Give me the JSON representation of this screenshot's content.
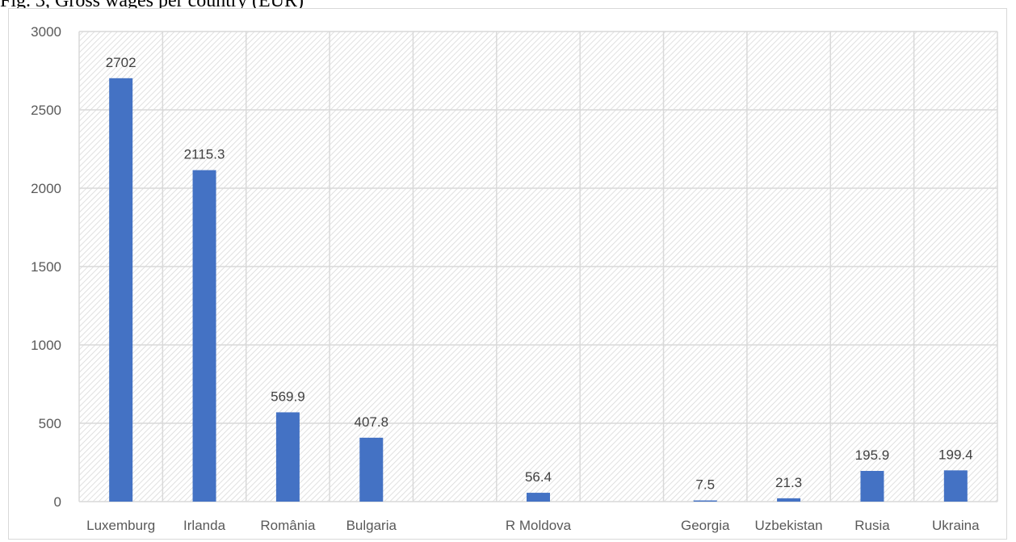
{
  "top_text": "Fig. 3, Gross wages per country (EUR)",
  "chart_data": {
    "type": "bar",
    "categories": [
      "Luxemburg",
      "Irlanda",
      "România",
      "Bulgaria",
      "",
      "R Moldova",
      "",
      "Georgia",
      "Uzbekistan",
      "Rusia",
      "Ukraina"
    ],
    "values": [
      2702,
      2115.3,
      569.9,
      407.8,
      null,
      56.4,
      null,
      7.5,
      21.3,
      195.9,
      199.4
    ],
    "data_labels": [
      "2702",
      "2115.3",
      "569.9",
      "407.8",
      "",
      "56.4",
      "",
      "7.5",
      "21.3",
      "195.9",
      "199.4"
    ],
    "title": "",
    "xlabel": "",
    "ylabel": "",
    "ylim": [
      0,
      3000
    ],
    "yticks": [
      "0",
      "500",
      "1000",
      "1500",
      "2000",
      "2500",
      "3000"
    ],
    "grid": true,
    "legend": "none",
    "colors": {
      "bar": "#4472c4",
      "grid": "#d9d9d9",
      "hatch": "#d9d9d9"
    }
  }
}
